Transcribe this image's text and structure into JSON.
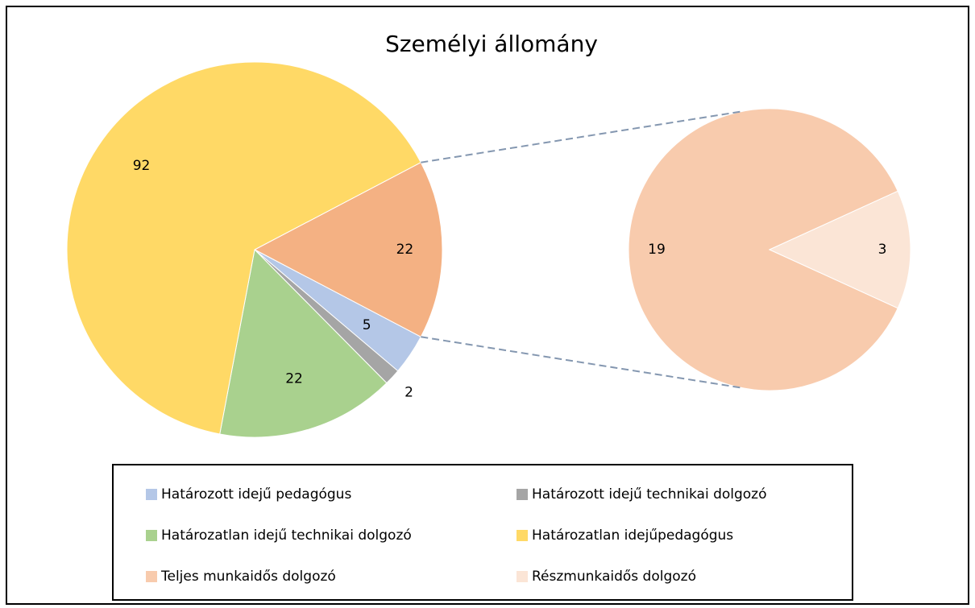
{
  "chart_data": {
    "type": "pie-of-pie",
    "title": "Személyi állomány",
    "primary": {
      "categories": [
        "Határozott idejű pedagógus",
        "Határozott idejű technikai dolgozó",
        "Határozatlan idejű technikai dolgozó",
        "Határozatlan idejűpedagógus"
      ],
      "values": [
        5,
        2,
        22,
        92
      ],
      "colors": [
        "#b4c7e7",
        "#a5a5a5",
        "#a9d18e",
        "#ffd966"
      ]
    },
    "combined": {
      "value": 22,
      "color": "#f4b183"
    },
    "secondary": {
      "categories": [
        "Teljes munkaidős dolgozó",
        "Részmunkaidős dolgozó"
      ],
      "values": [
        19,
        3
      ],
      "colors": [
        "#f8cbad",
        "#fbe5d6"
      ]
    }
  }
}
